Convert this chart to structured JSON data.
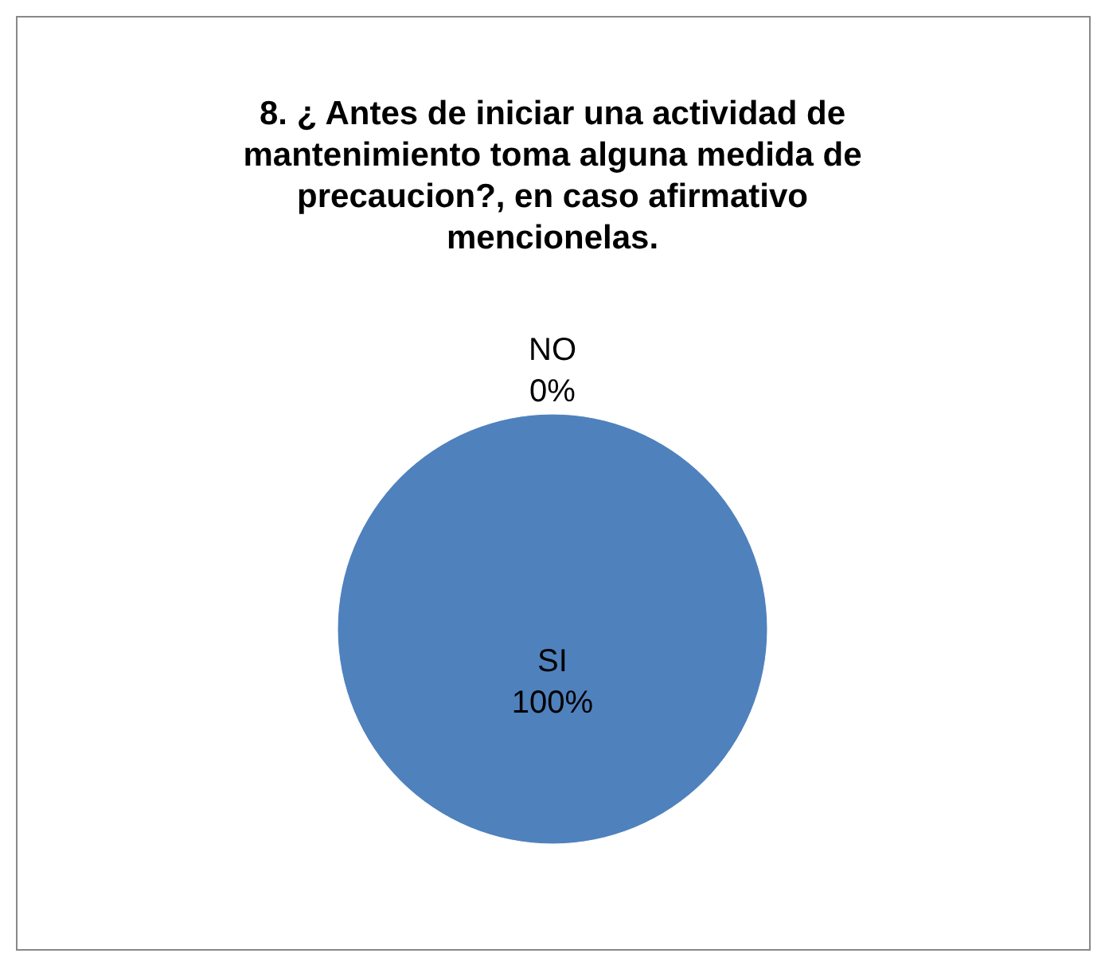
{
  "chart_data": {
    "type": "pie",
    "title": "8. ¿ Antes de iniciar una actividad de\nmantenimiento toma alguna medida de\nprecaucion?, en caso afirmativo\nmencionelas.",
    "categories": [
      "NO",
      "SI"
    ],
    "values": [
      0,
      100
    ],
    "colors": [
      "#c0504d",
      "#4f81bd"
    ],
    "value_labels": [
      "0%",
      "100%"
    ],
    "legend": false
  }
}
